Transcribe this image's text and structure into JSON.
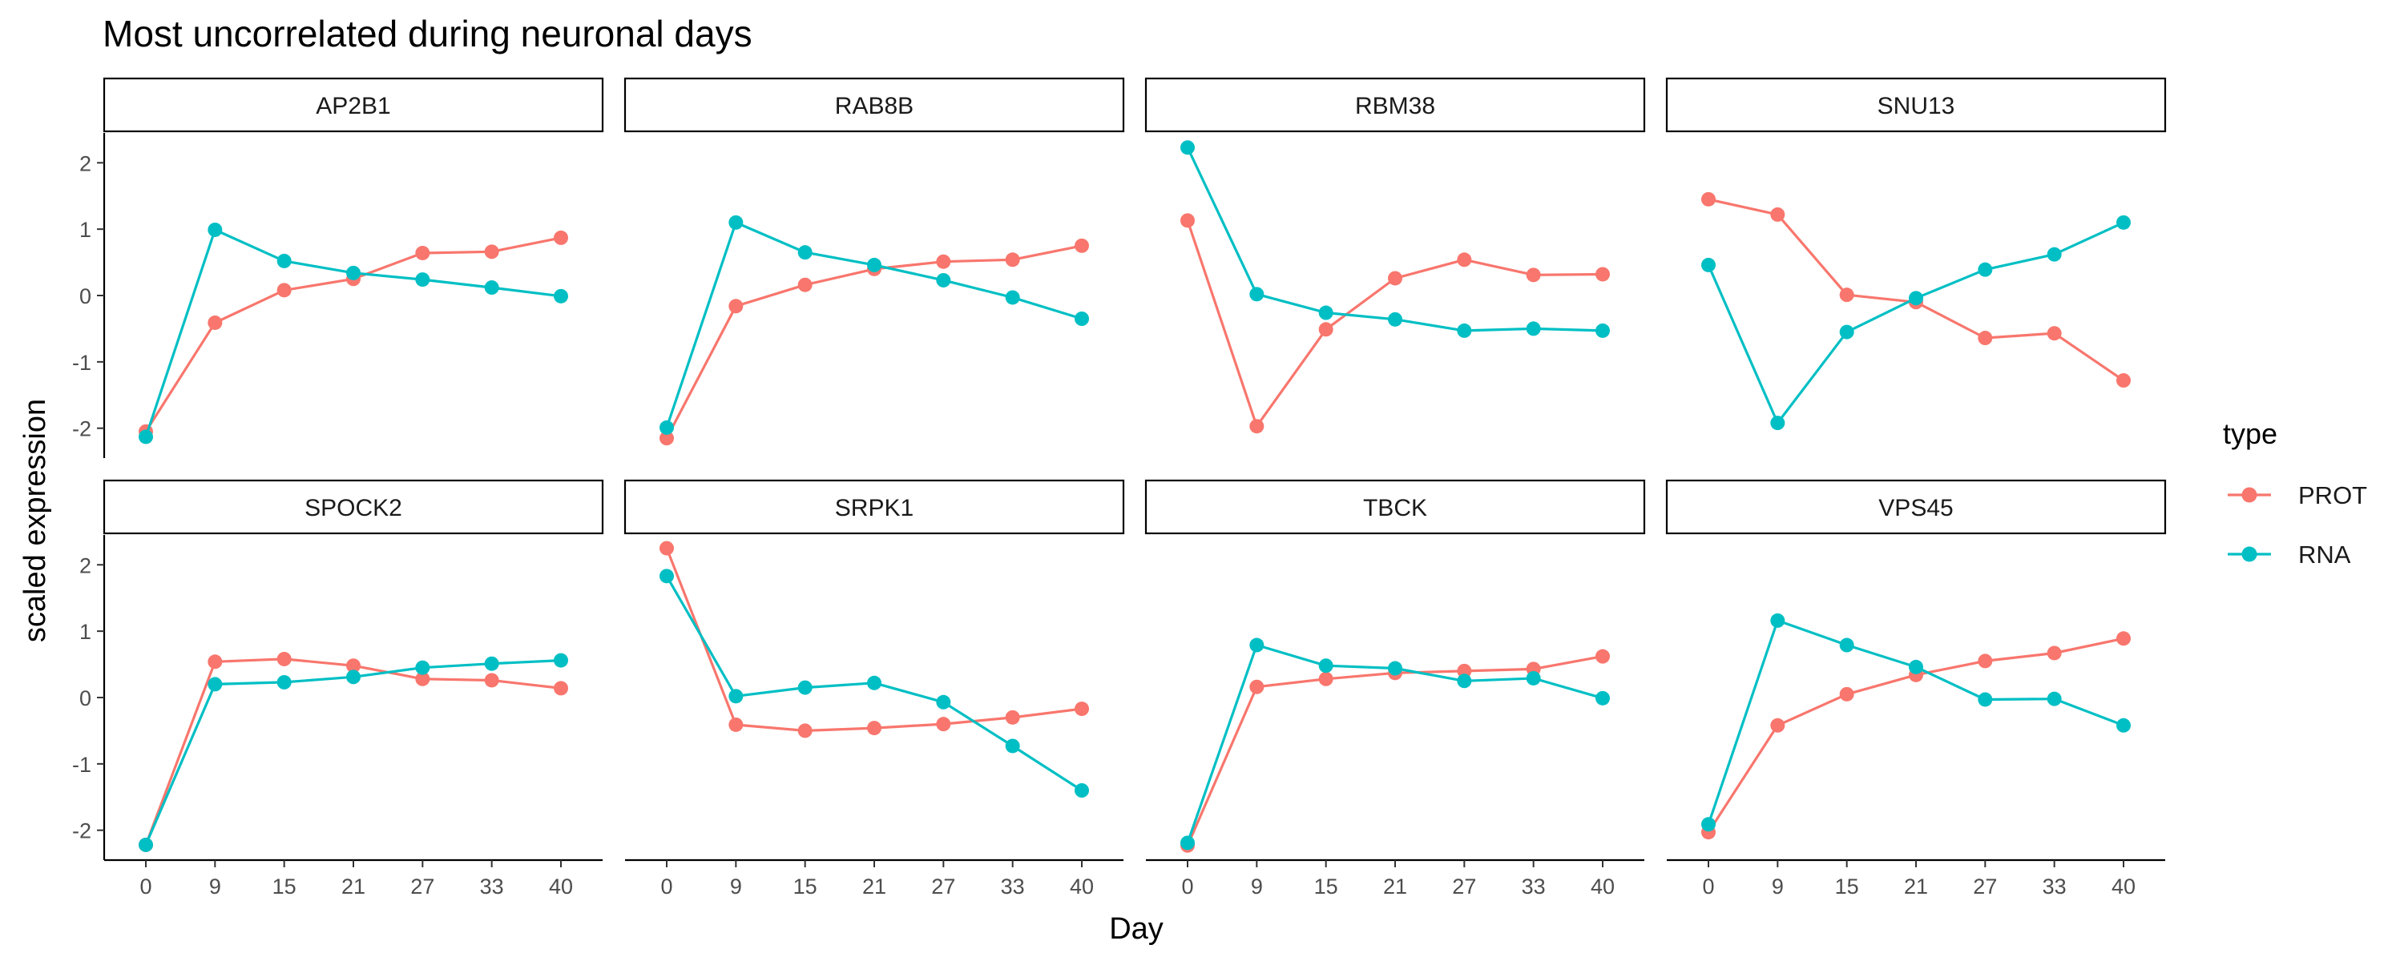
{
  "chart_data": {
    "type": "line",
    "title": "Most uncorrelated during neuronal days",
    "xlabel": "Day",
    "ylabel": "scaled expression",
    "x": [
      0,
      9,
      15,
      21,
      27,
      33,
      40
    ],
    "y_ticks": [
      -2,
      -1,
      0,
      1,
      2
    ],
    "ylim": [
      -2.45,
      2.45
    ],
    "grid": false,
    "legend": {
      "title": "type",
      "position": "right",
      "entries": [
        {
          "label": "PROT",
          "color": "#F8766D"
        },
        {
          "label": "RNA",
          "color": "#00BFC4"
        }
      ]
    },
    "panels": [
      {
        "name": "AP2B1",
        "series": [
          {
            "name": "PROT",
            "values": [
              -2.05,
              -0.41,
              0.08,
              0.25,
              0.64,
              0.66,
              0.87
            ]
          },
          {
            "name": "RNA",
            "values": [
              -2.13,
              0.99,
              0.52,
              0.34,
              0.24,
              0.12,
              -0.01
            ]
          }
        ]
      },
      {
        "name": "RAB8B",
        "series": [
          {
            "name": "PROT",
            "values": [
              -2.15,
              -0.16,
              0.16,
              0.4,
              0.51,
              0.54,
              0.75
            ]
          },
          {
            "name": "RNA",
            "values": [
              -1.99,
              1.1,
              0.65,
              0.46,
              0.23,
              -0.03,
              -0.35
            ]
          }
        ]
      },
      {
        "name": "RBM38",
        "series": [
          {
            "name": "PROT",
            "values": [
              1.13,
              -1.97,
              -0.51,
              0.26,
              0.54,
              0.31,
              0.32
            ]
          },
          {
            "name": "RNA",
            "values": [
              2.23,
              0.02,
              -0.26,
              -0.36,
              -0.53,
              -0.5,
              -0.53
            ]
          }
        ]
      },
      {
        "name": "SNU13",
        "series": [
          {
            "name": "PROT",
            "values": [
              1.45,
              1.22,
              0.01,
              -0.1,
              -0.64,
              -0.57,
              -1.28
            ]
          },
          {
            "name": "RNA",
            "values": [
              0.46,
              -1.92,
              -0.55,
              -0.04,
              0.39,
              0.62,
              1.1
            ]
          }
        ]
      },
      {
        "name": "SPOCK2",
        "series": [
          {
            "name": "PROT",
            "values": [
              -2.22,
              0.54,
              0.58,
              0.48,
              0.28,
              0.26,
              0.14
            ]
          },
          {
            "name": "RNA",
            "values": [
              -2.22,
              0.2,
              0.23,
              0.31,
              0.45,
              0.51,
              0.56
            ]
          }
        ]
      },
      {
        "name": "SRPK1",
        "series": [
          {
            "name": "PROT",
            "values": [
              2.25,
              -0.41,
              -0.5,
              -0.46,
              -0.4,
              -0.3,
              -0.17
            ]
          },
          {
            "name": "RNA",
            "values": [
              1.83,
              0.02,
              0.15,
              0.22,
              -0.07,
              -0.73,
              -1.4
            ]
          }
        ]
      },
      {
        "name": "TBCK",
        "series": [
          {
            "name": "PROT",
            "values": [
              -2.23,
              0.16,
              0.28,
              0.37,
              0.4,
              0.43,
              0.62
            ]
          },
          {
            "name": "RNA",
            "values": [
              -2.19,
              0.79,
              0.48,
              0.44,
              0.25,
              0.29,
              -0.01
            ]
          }
        ]
      },
      {
        "name": "VPS45",
        "series": [
          {
            "name": "PROT",
            "values": [
              -2.03,
              -0.42,
              0.05,
              0.34,
              0.55,
              0.67,
              0.89
            ]
          },
          {
            "name": "RNA",
            "values": [
              -1.91,
              1.16,
              0.79,
              0.46,
              -0.03,
              -0.02,
              -0.42
            ]
          }
        ]
      }
    ]
  }
}
